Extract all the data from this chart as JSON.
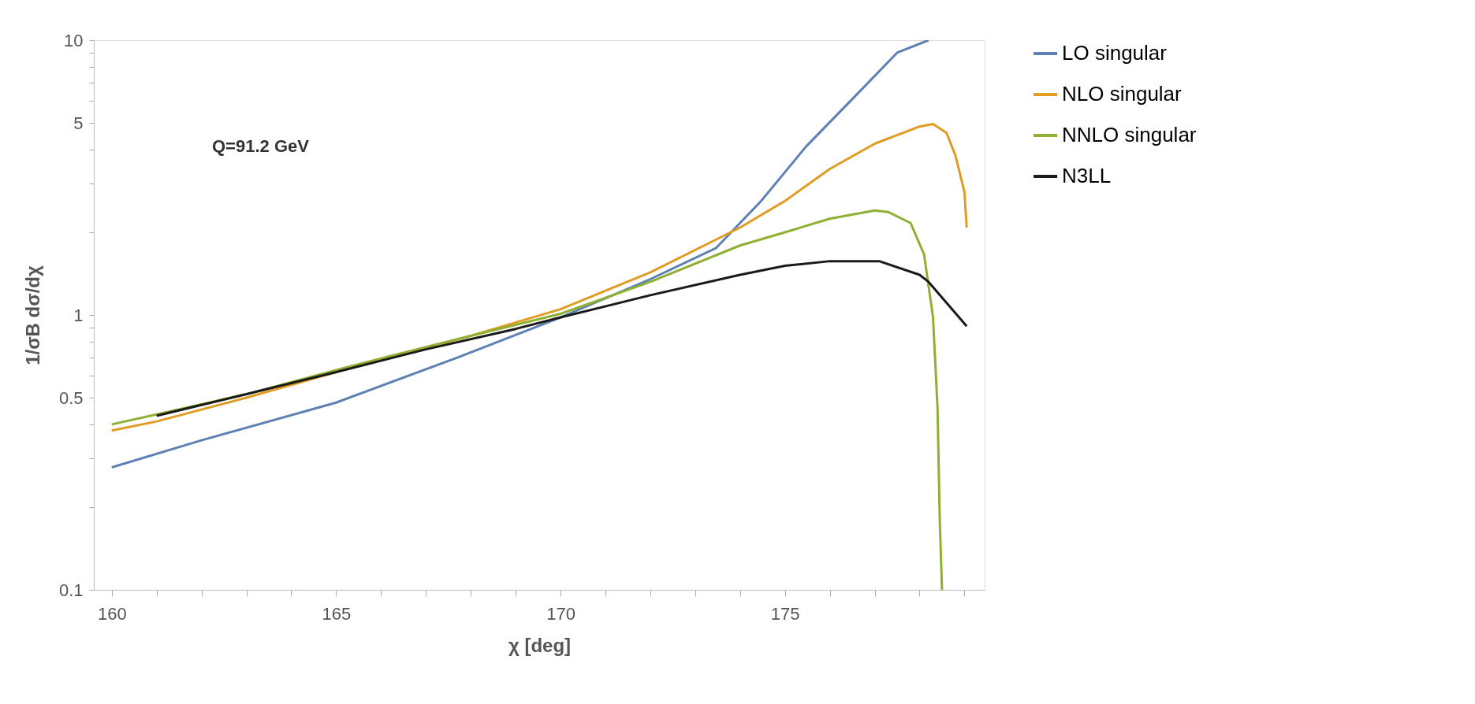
{
  "chart_data": {
    "type": "line",
    "xlabel": "χ [deg]",
    "ylabel": "1/σB dσ/dχ",
    "annotations": [
      "Q=91.2 GeV"
    ],
    "log": "y",
    "grid": false,
    "legend": "right",
    "xlim": [
      159.6,
      179.45
    ],
    "ylim": [
      0.1,
      10
    ],
    "xticks": [
      160,
      {
        "value": 161,
        "label": null
      },
      {
        "value": 162,
        "label": null
      },
      {
        "value": 163,
        "label": null
      },
      {
        "value": 164,
        "label": null
      },
      165,
      {
        "value": 166,
        "label": null
      },
      {
        "value": 167,
        "label": null
      },
      {
        "value": 168,
        "label": null
      },
      {
        "value": 169,
        "label": null
      },
      170,
      {
        "value": 171,
        "label": null
      },
      {
        "value": 172,
        "label": null
      },
      {
        "value": 173,
        "label": null
      },
      {
        "value": 174,
        "label": null
      },
      175,
      {
        "value": 176,
        "label": null
      },
      {
        "value": 177,
        "label": null
      },
      {
        "value": 178,
        "label": null
      },
      {
        "value": 179,
        "label": null
      }
    ],
    "yticks": [
      0.1,
      {
        "value": 0.2,
        "label": null
      },
      {
        "value": 0.3,
        "label": null
      },
      {
        "value": 0.4,
        "label": null
      },
      0.5,
      {
        "value": 0.6,
        "label": null
      },
      {
        "value": 0.7,
        "label": null
      },
      {
        "value": 0.8,
        "label": null
      },
      {
        "value": 0.9,
        "label": null
      },
      1,
      {
        "value": 2,
        "label": null
      },
      {
        "value": 3,
        "label": null
      },
      {
        "value": 4,
        "label": null
      },
      5,
      {
        "value": 6,
        "label": null
      },
      {
        "value": 7,
        "label": null
      },
      {
        "value": 8,
        "label": null
      },
      {
        "value": 9,
        "label": null
      },
      10
    ],
    "series": [
      {
        "name": "LO singular",
        "color": "#5e81b5",
        "x": [
          160,
          162,
          165,
          167.7,
          170,
          172,
          173.46,
          174.47,
          175.47,
          176.5,
          177.5,
          178.2
        ],
        "values": [
          0.279,
          0.35,
          0.48,
          0.7,
          0.98,
          1.35,
          1.75,
          2.6,
          4.1,
          6.1,
          9.0,
          10
        ]
      },
      {
        "name": "NLO singular",
        "color": "#e19c24",
        "x": [
          160,
          161,
          163,
          165,
          168,
          170,
          172,
          174,
          175,
          176,
          177,
          178,
          178.3,
          178.6,
          178.8,
          179.0,
          179.05
        ],
        "values": [
          0.38,
          0.41,
          0.5,
          0.62,
          0.84,
          1.05,
          1.43,
          2.08,
          2.6,
          3.4,
          4.2,
          4.85,
          4.95,
          4.6,
          3.8,
          2.8,
          2.08
        ]
      },
      {
        "name": "NNLO singular",
        "color": "#8fb032",
        "x": [
          160,
          161,
          163,
          165,
          167,
          168,
          170,
          172,
          174,
          175,
          176,
          177,
          177.3,
          177.8,
          178.1,
          178.3,
          178.4,
          178.45,
          178.5
        ],
        "values": [
          0.4,
          0.435,
          0.515,
          0.63,
          0.765,
          0.84,
          1.01,
          1.32,
          1.79,
          2.0,
          2.24,
          2.4,
          2.37,
          2.16,
          1.66,
          0.98,
          0.46,
          0.18,
          0.1
        ]
      },
      {
        "name": "N3LL",
        "color": "#1a1a1a",
        "x": [
          161,
          163,
          165,
          167,
          169,
          170,
          172,
          174,
          175,
          176,
          177,
          177.1,
          178,
          178.2,
          179.05
        ],
        "values": [
          0.43,
          0.515,
          0.62,
          0.75,
          0.89,
          0.98,
          1.18,
          1.4,
          1.51,
          1.57,
          1.57,
          1.57,
          1.4,
          1.32,
          0.91
        ]
      }
    ]
  }
}
